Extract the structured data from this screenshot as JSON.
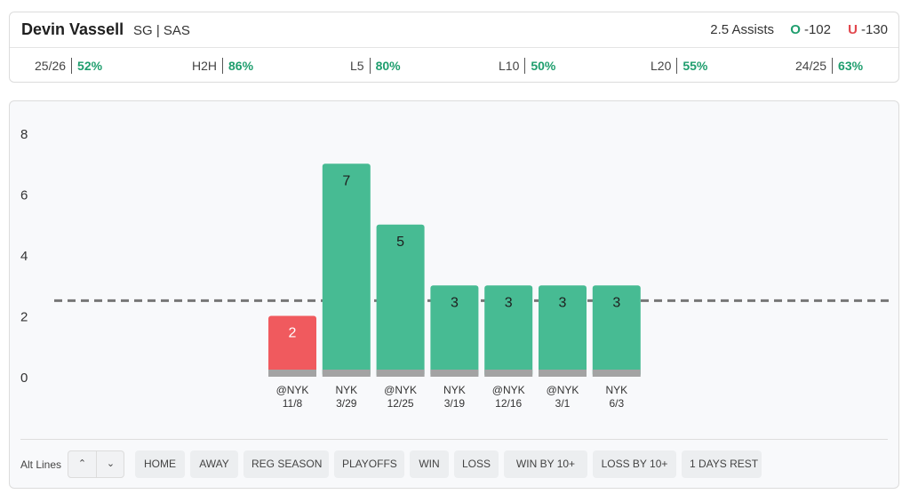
{
  "header": {
    "player_name": "Devin Vassell",
    "player_meta": "SG | SAS",
    "prop": "2.5 Assists",
    "over_label": "O",
    "over_odds": "-102",
    "under_label": "U",
    "under_odds": "-130",
    "stats": [
      {
        "label": "25/26",
        "value": "52%"
      },
      {
        "label": "H2H",
        "value": "86%"
      },
      {
        "label": "L5",
        "value": "80%"
      },
      {
        "label": "L10",
        "value": "50%"
      },
      {
        "label": "L20",
        "value": "55%"
      },
      {
        "label": "24/25",
        "value": "63%"
      }
    ]
  },
  "chart_data": {
    "type": "bar",
    "categories": [
      "@NYK 11/8",
      "NYK 3/29",
      "@NYK 12/25",
      "NYK 3/19",
      "@NYK 12/16",
      "@NYK 3/1",
      "NYK 6/3"
    ],
    "category_opponents": [
      "@NYK",
      "NYK",
      "@NYK",
      "NYK",
      "@NYK",
      "@NYK",
      "NYK"
    ],
    "category_dates": [
      "11/8",
      "3/29",
      "12/25",
      "3/19",
      "12/16",
      "3/1",
      "6/3"
    ],
    "values": [
      2,
      7,
      5,
      3,
      3,
      3,
      3
    ],
    "line": 2.5,
    "ylim": [
      0,
      8
    ],
    "yticks": [
      0,
      2,
      4,
      6,
      8
    ],
    "colors": {
      "over": "#47bb93",
      "under": "#f05a5e",
      "base": "#a3a3a3",
      "line": "#777777"
    },
    "grid": false
  },
  "filters": {
    "alt_lines_label": "Alt Lines",
    "buttons": [
      "HOME",
      "AWAY",
      "REG SEASON",
      "PLAYOFFS",
      "WIN",
      "LOSS",
      "WIN BY 10+",
      "LOSS BY 10+",
      "1 DAYS REST"
    ]
  }
}
